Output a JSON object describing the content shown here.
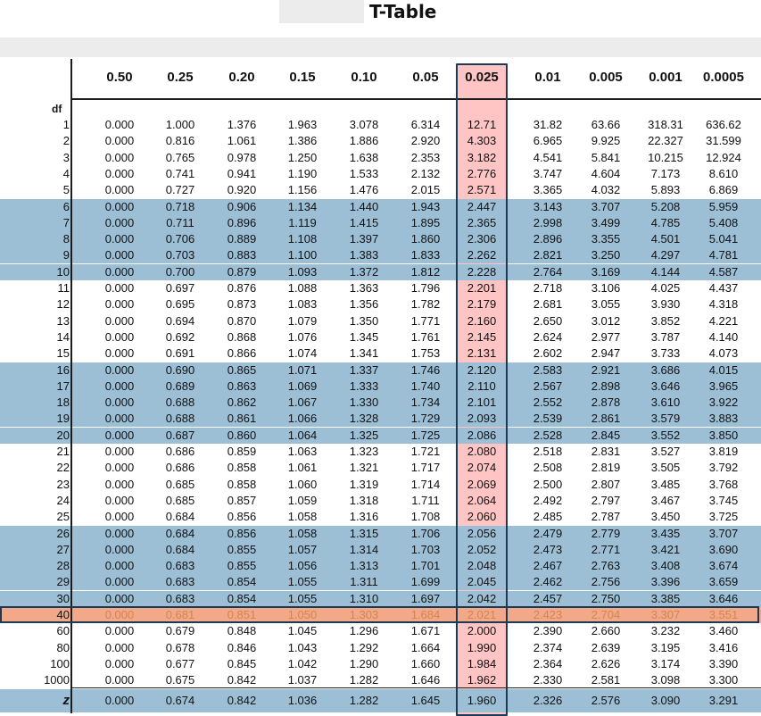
{
  "title": "T-Table",
  "header": [
    "0.50",
    "0.25",
    "0.20",
    "0.15",
    "0.10",
    "0.05",
    "0.025",
    "0.01",
    "0.005",
    "0.001",
    "0.0005"
  ],
  "df_label": "df",
  "rows": [
    {
      "df": "1",
      "vals": [
        "0.000",
        "1.000",
        "1.376",
        "1.963",
        "3.078",
        "6.314",
        "12.71",
        "31.82",
        "63.66",
        "318.31",
        "636.62"
      ]
    },
    {
      "df": "2",
      "vals": [
        "0.000",
        "0.816",
        "1.061",
        "1.386",
        "1.886",
        "2.920",
        "4.303",
        "6.965",
        "9.925",
        "22.327",
        "31.599"
      ]
    },
    {
      "df": "3",
      "vals": [
        "0.000",
        "0.765",
        "0.978",
        "1.250",
        "1.638",
        "2.353",
        "3.182",
        "4.541",
        "5.841",
        "10.215",
        "12.924"
      ]
    },
    {
      "df": "4",
      "vals": [
        "0.000",
        "0.741",
        "0.941",
        "1.190",
        "1.533",
        "2.132",
        "2.776",
        "3.747",
        "4.604",
        "7.173",
        "8.610"
      ]
    },
    {
      "df": "5",
      "vals": [
        "0.000",
        "0.727",
        "0.920",
        "1.156",
        "1.476",
        "2.015",
        "2.571",
        "3.365",
        "4.032",
        "5.893",
        "6.869"
      ]
    },
    {
      "df": "6",
      "vals": [
        "0.000",
        "0.718",
        "0.906",
        "1.134",
        "1.440",
        "1.943",
        "2.447",
        "3.143",
        "3.707",
        "5.208",
        "5.959"
      ]
    },
    {
      "df": "7",
      "vals": [
        "0.000",
        "0.711",
        "0.896",
        "1.119",
        "1.415",
        "1.895",
        "2.365",
        "2.998",
        "3.499",
        "4.785",
        "5.408"
      ]
    },
    {
      "df": "8",
      "vals": [
        "0.000",
        "0.706",
        "0.889",
        "1.108",
        "1.397",
        "1.860",
        "2.306",
        "2.896",
        "3.355",
        "4.501",
        "5.041"
      ]
    },
    {
      "df": "9",
      "vals": [
        "0.000",
        "0.703",
        "0.883",
        "1.100",
        "1.383",
        "1.833",
        "2.262",
        "2.821",
        "3.250",
        "4.297",
        "4.781"
      ]
    },
    {
      "df": "10",
      "vals": [
        "0.000",
        "0.700",
        "0.879",
        "1.093",
        "1.372",
        "1.812",
        "2.228",
        "2.764",
        "3.169",
        "4.144",
        "4.587"
      ]
    },
    {
      "df": "11",
      "vals": [
        "0.000",
        "0.697",
        "0.876",
        "1.088",
        "1.363",
        "1.796",
        "2.201",
        "2.718",
        "3.106",
        "4.025",
        "4.437"
      ]
    },
    {
      "df": "12",
      "vals": [
        "0.000",
        "0.695",
        "0.873",
        "1.083",
        "1.356",
        "1.782",
        "2.179",
        "2.681",
        "3.055",
        "3.930",
        "4.318"
      ]
    },
    {
      "df": "13",
      "vals": [
        "0.000",
        "0.694",
        "0.870",
        "1.079",
        "1.350",
        "1.771",
        "2.160",
        "2.650",
        "3.012",
        "3.852",
        "4.221"
      ]
    },
    {
      "df": "14",
      "vals": [
        "0.000",
        "0.692",
        "0.868",
        "1.076",
        "1.345",
        "1.761",
        "2.145",
        "2.624",
        "2.977",
        "3.787",
        "4.140"
      ]
    },
    {
      "df": "15",
      "vals": [
        "0.000",
        "0.691",
        "0.866",
        "1.074",
        "1.341",
        "1.753",
        "2.131",
        "2.602",
        "2.947",
        "3.733",
        "4.073"
      ]
    },
    {
      "df": "16",
      "vals": [
        "0.000",
        "0.690",
        "0.865",
        "1.071",
        "1.337",
        "1.746",
        "2.120",
        "2.583",
        "2.921",
        "3.686",
        "4.015"
      ]
    },
    {
      "df": "17",
      "vals": [
        "0.000",
        "0.689",
        "0.863",
        "1.069",
        "1.333",
        "1.740",
        "2.110",
        "2.567",
        "2.898",
        "3.646",
        "3.965"
      ]
    },
    {
      "df": "18",
      "vals": [
        "0.000",
        "0.688",
        "0.862",
        "1.067",
        "1.330",
        "1.734",
        "2.101",
        "2.552",
        "2.878",
        "3.610",
        "3.922"
      ]
    },
    {
      "df": "19",
      "vals": [
        "0.000",
        "0.688",
        "0.861",
        "1.066",
        "1.328",
        "1.729",
        "2.093",
        "2.539",
        "2.861",
        "3.579",
        "3.883"
      ]
    },
    {
      "df": "20",
      "vals": [
        "0.000",
        "0.687",
        "0.860",
        "1.064",
        "1.325",
        "1.725",
        "2.086",
        "2.528",
        "2.845",
        "3.552",
        "3.850"
      ]
    },
    {
      "df": "21",
      "vals": [
        "0.000",
        "0.686",
        "0.859",
        "1.063",
        "1.323",
        "1.721",
        "2.080",
        "2.518",
        "2.831",
        "3.527",
        "3.819"
      ]
    },
    {
      "df": "22",
      "vals": [
        "0.000",
        "0.686",
        "0.858",
        "1.061",
        "1.321",
        "1.717",
        "2.074",
        "2.508",
        "2.819",
        "3.505",
        "3.792"
      ]
    },
    {
      "df": "23",
      "vals": [
        "0.000",
        "0.685",
        "0.858",
        "1.060",
        "1.319",
        "1.714",
        "2.069",
        "2.500",
        "2.807",
        "3.485",
        "3.768"
      ]
    },
    {
      "df": "24",
      "vals": [
        "0.000",
        "0.685",
        "0.857",
        "1.059",
        "1.318",
        "1.711",
        "2.064",
        "2.492",
        "2.797",
        "3.467",
        "3.745"
      ]
    },
    {
      "df": "25",
      "vals": [
        "0.000",
        "0.684",
        "0.856",
        "1.058",
        "1.316",
        "1.708",
        "2.060",
        "2.485",
        "2.787",
        "3.450",
        "3.725"
      ]
    },
    {
      "df": "26",
      "vals": [
        "0.000",
        "0.684",
        "0.856",
        "1.058",
        "1.315",
        "1.706",
        "2.056",
        "2.479",
        "2.779",
        "3.435",
        "3.707"
      ]
    },
    {
      "df": "27",
      "vals": [
        "0.000",
        "0.684",
        "0.855",
        "1.057",
        "1.314",
        "1.703",
        "2.052",
        "2.473",
        "2.771",
        "3.421",
        "3.690"
      ]
    },
    {
      "df": "28",
      "vals": [
        "0.000",
        "0.683",
        "0.855",
        "1.056",
        "1.313",
        "1.701",
        "2.048",
        "2.467",
        "2.763",
        "3.408",
        "3.674"
      ]
    },
    {
      "df": "29",
      "vals": [
        "0.000",
        "0.683",
        "0.854",
        "1.055",
        "1.311",
        "1.699",
        "2.045",
        "2.462",
        "2.756",
        "3.396",
        "3.659"
      ]
    },
    {
      "df": "30",
      "vals": [
        "0.000",
        "0.683",
        "0.854",
        "1.055",
        "1.310",
        "1.697",
        "2.042",
        "2.457",
        "2.750",
        "3.385",
        "3.646"
      ]
    },
    {
      "df": "40",
      "vals": [
        "0.000",
        "0.681",
        "0.851",
        "1.050",
        "1.303",
        "1.684",
        "2.021",
        "2.423",
        "2.704",
        "3.307",
        "3.551"
      ]
    },
    {
      "df": "60",
      "vals": [
        "0.000",
        "0.679",
        "0.848",
        "1.045",
        "1.296",
        "1.671",
        "2.000",
        "2.390",
        "2.660",
        "3.232",
        "3.460"
      ]
    },
    {
      "df": "80",
      "vals": [
        "0.000",
        "0.678",
        "0.846",
        "1.043",
        "1.292",
        "1.664",
        "1.990",
        "2.374",
        "2.639",
        "3.195",
        "3.416"
      ]
    },
    {
      "df": "100",
      "vals": [
        "0.000",
        "0.677",
        "0.845",
        "1.042",
        "1.290",
        "1.660",
        "1.984",
        "2.364",
        "2.626",
        "3.174",
        "3.390"
      ]
    },
    {
      "df": "1000",
      "vals": [
        "0.000",
        "0.675",
        "0.842",
        "1.037",
        "1.282",
        "1.646",
        "1.962",
        "2.330",
        "2.581",
        "3.098",
        "3.300"
      ]
    }
  ],
  "z_row": {
    "label": "z",
    "vals": [
      "0.000",
      "0.674",
      "0.842",
      "1.036",
      "1.282",
      "1.645",
      "1.960",
      "2.326",
      "2.576",
      "3.090",
      "3.291"
    ]
  },
  "highlight_df": "40",
  "highlight_column": "0.025",
  "colors": {
    "band_blue": "#9cbfd6",
    "row_highlight": "#f1a98a",
    "column_highlight": "#ff9f9f",
    "border": "#1c3a55"
  }
}
